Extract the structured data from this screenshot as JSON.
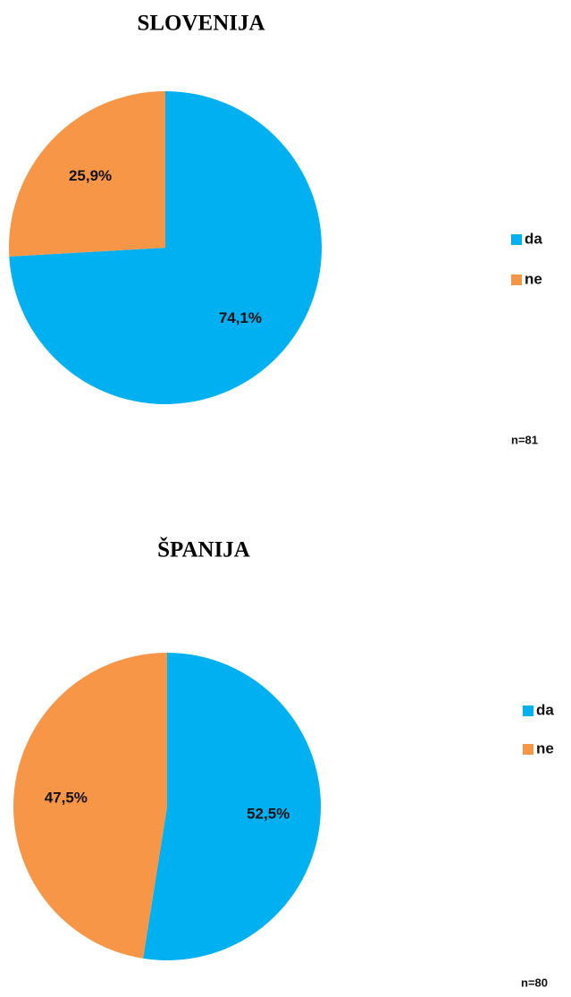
{
  "chart_data": [
    {
      "type": "pie",
      "title": "SLOVENIJA",
      "categories": [
        "da",
        "ne"
      ],
      "values": [
        74.1,
        25.9
      ],
      "value_labels": [
        "74,1%",
        "25,9%"
      ],
      "colors": [
        "#00b0f0",
        "#f79646"
      ],
      "annotation": "n=81"
    },
    {
      "type": "pie",
      "title": "ŠPANIJA",
      "categories": [
        "da",
        "ne"
      ],
      "values": [
        52.5,
        47.5
      ],
      "value_labels": [
        "52,5%",
        "47,5%"
      ],
      "colors": [
        "#00b0f0",
        "#f79646"
      ],
      "annotation": "n=80"
    }
  ]
}
